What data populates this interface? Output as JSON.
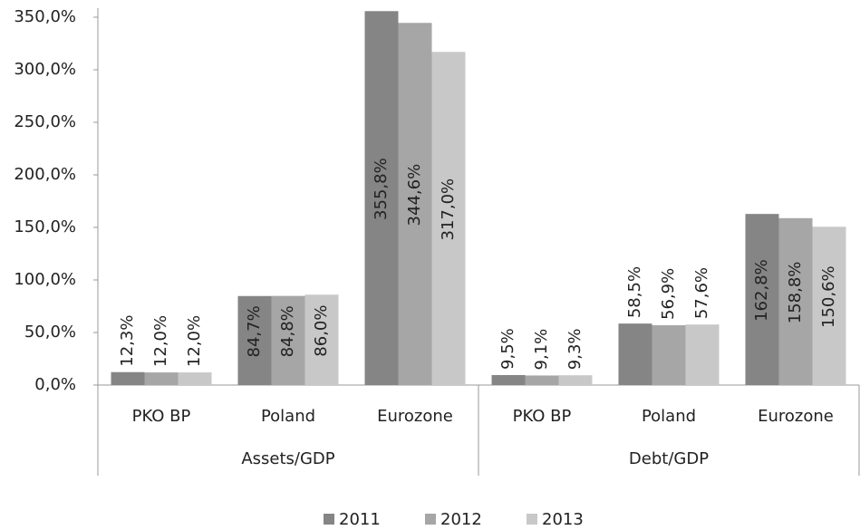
{
  "chart_data": {
    "type": "bar",
    "categories": [
      "PKO BP",
      "Poland",
      "Eurozone",
      "PKO BP",
      "Poland",
      "Eurozone"
    ],
    "category_groups": [
      "Assets/GDP",
      "Debt/GDP"
    ],
    "series": [
      {
        "name": "2011",
        "color": "#858585",
        "values": [
          12.3,
          84.7,
          355.8,
          9.5,
          58.5,
          162.8
        ],
        "value_labels": [
          "12,3%",
          "84,7%",
          "355,8%",
          "9,5%",
          "58,5%",
          "162,8%"
        ]
      },
      {
        "name": "2012",
        "color": "#a6a6a6",
        "values": [
          12.0,
          84.8,
          344.6,
          9.1,
          56.9,
          158.8
        ],
        "value_labels": [
          "12,0%",
          "84,8%",
          "344,6%",
          "9,1%",
          "56,9%",
          "158,8%"
        ]
      },
      {
        "name": "2013",
        "color": "#c8c8c8",
        "values": [
          12.0,
          86.0,
          317.0,
          9.3,
          57.6,
          150.6
        ],
        "value_labels": [
          "12,0%",
          "86,0%",
          "317,0%",
          "9,3%",
          "57,6%",
          "150,6%"
        ]
      }
    ],
    "ylim": [
      0,
      350
    ],
    "yticks": [
      {
        "value": 0,
        "label": "0,0%"
      },
      {
        "value": 50,
        "label": "50,0%"
      },
      {
        "value": 100,
        "label": "100,0%"
      },
      {
        "value": 150,
        "label": "150,0%"
      },
      {
        "value": 200,
        "label": "200,0%"
      },
      {
        "value": 250,
        "label": "250,0%"
      },
      {
        "value": 300,
        "label": "300,0%"
      },
      {
        "value": 350,
        "label": "350,0%"
      }
    ],
    "grid": false,
    "legend": "bottom"
  }
}
